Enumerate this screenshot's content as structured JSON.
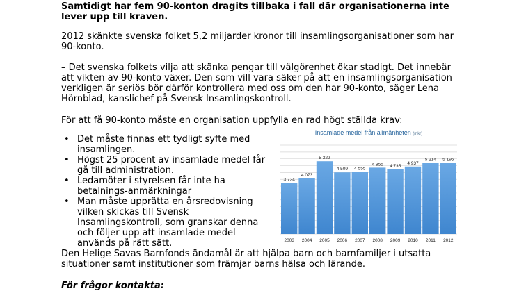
{
  "lead": "Samtidigt har fem 90-konton dragits tillbaka i fall där organisationerna inte lever upp till kraven.",
  "paragraph1": "2012 skänkte svenska folket 5,2 miljarder kronor till insamlingsorganisationer som har 90-konto.",
  "paragraph2": "– Det svenska folkets vilja att skänka pengar till välgörenhet ökar stadigt. Det innebär att vikten av 90-konto växer. Den som vill vara säker på att en insamlingsorganisation verkligen är seriös bör därför kontrollera med oss om den har 90-konto, säger Lena Hörnblad, kanslichef på Svensk Insamlingskontroll.",
  "paragraph3": "För att få 90-konto måste en organisation uppfylla en rad högt ställda krav:",
  "bullet_symbol": "•",
  "bullets": [
    "Det måste finnas ett tydligt syfte med insamlingen.",
    "Högst 25 procent av insamlade medel får gå till administration.",
    "Ledamöter i styrelsen får inte ha betalnings-anmärkningar",
    "Man måste upprätta en årsredovisning vilken skickas till Svensk Insamlingskontroll, som granskar denna och följer upp att insamlade medel används på rätt sätt."
  ],
  "paragraph4": "Den Helige Savas Barnfonds ändamål är att hjälpa barn och barnfamiljer i utsatta situationer samt institutioner som främjar barns hälsa och lärande.",
  "contact_heading": "För frågor kontakta:",
  "chart_data": {
    "type": "bar",
    "title": "Insamlade medel från allmänheten",
    "unit": "(mkr)",
    "categories": [
      "2003",
      "2004",
      "2005",
      "2006",
      "2007",
      "2008",
      "2009",
      "2010",
      "2011",
      "2012"
    ],
    "values": [
      3724,
      4073,
      5322,
      4509,
      4555,
      4855,
      4735,
      4937,
      5214,
      5195
    ],
    "value_labels": [
      "3 724",
      "4 073",
      "5 322",
      "4 509",
      "4 555",
      "4 855",
      "4 735",
      "4 937",
      "5 214",
      "5 195"
    ],
    "ylim": [
      0,
      6500
    ],
    "grid": true,
    "legend": "none",
    "colors": {
      "bar": "#3f86cf",
      "bar_top": "#6aa8e4",
      "grid": "#d6d6d6",
      "label": "#1f1f1f",
      "title": "#1f5f99"
    }
  }
}
